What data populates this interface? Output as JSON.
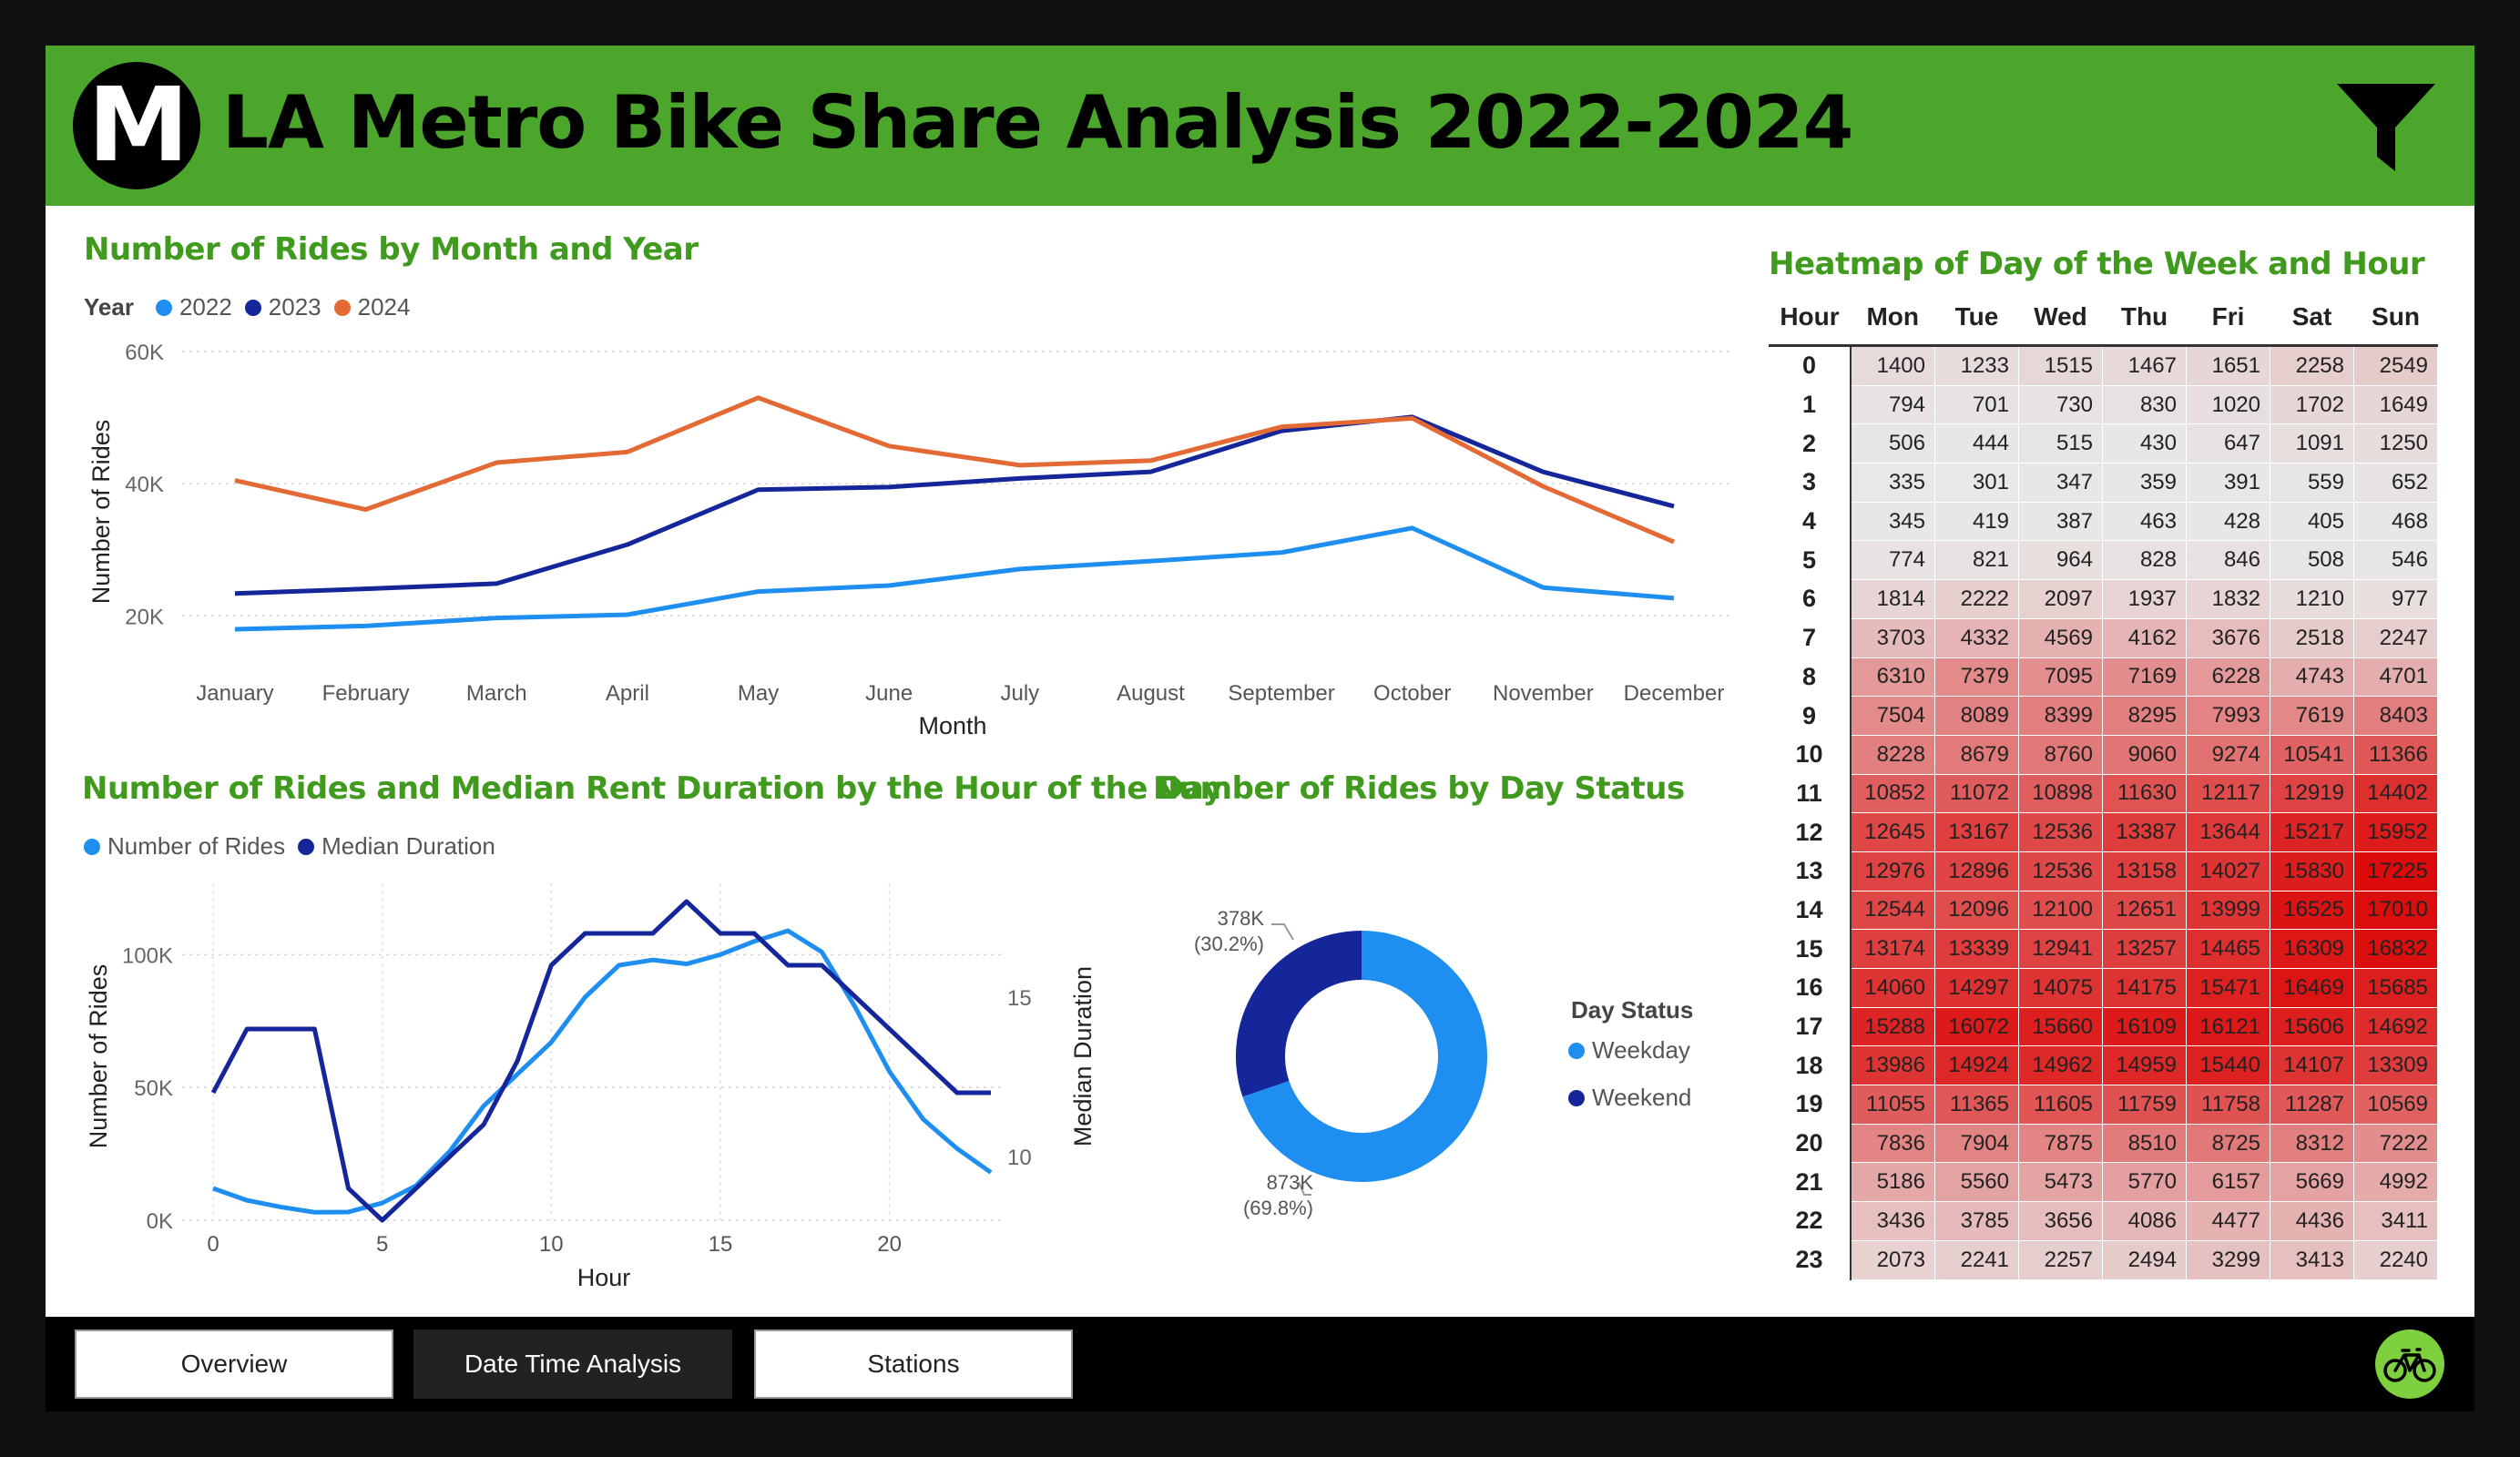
{
  "header": {
    "logo_letter": "M",
    "title": "LA Metro Bike Share Analysis 2022-2024",
    "filter_icon": "filter-icon"
  },
  "colors": {
    "header_bg": "#4ca62c",
    "title_green": "#3f9a1d",
    "y2022": "#1e8ff0",
    "y2023": "#142699",
    "y2024": "#e46a35",
    "weekday": "#1e8ff0",
    "weekend": "#142699"
  },
  "monthly": {
    "title": "Number of Rides by Month and Year",
    "legend_title": "Year",
    "xlabel": "Month",
    "ylabel": "Number of Rides"
  },
  "hourly": {
    "title": "Number of Rides and Median Rent Duration by the Hour of the Day",
    "xlabel": "Hour",
    "ylabel": "Number of Rides",
    "y2label": "Median Duration"
  },
  "daystatus": {
    "title": "Number of Rides by Day Status",
    "legend_title": "Day Status"
  },
  "heatmap": {
    "title": "Heatmap of Day of the Week and Hour",
    "columns": [
      "Hour",
      "Mon",
      "Tue",
      "Wed",
      "Thu",
      "Fri",
      "Sat",
      "Sun"
    ],
    "rows": [
      [
        0,
        1400,
        1233,
        1515,
        1467,
        1651,
        2258,
        2549
      ],
      [
        1,
        794,
        701,
        730,
        830,
        1020,
        1702,
        1649
      ],
      [
        2,
        506,
        444,
        515,
        430,
        647,
        1091,
        1250
      ],
      [
        3,
        335,
        301,
        347,
        359,
        391,
        559,
        652
      ],
      [
        4,
        345,
        419,
        387,
        463,
        428,
        405,
        468
      ],
      [
        5,
        774,
        821,
        964,
        828,
        846,
        508,
        546
      ],
      [
        6,
        1814,
        2222,
        2097,
        1937,
        1832,
        1210,
        977
      ],
      [
        7,
        3703,
        4332,
        4569,
        4162,
        3676,
        2518,
        2247
      ],
      [
        8,
        6310,
        7379,
        7095,
        7169,
        6228,
        4743,
        4701
      ],
      [
        9,
        7504,
        8089,
        8399,
        8295,
        7993,
        7619,
        8403
      ],
      [
        10,
        8228,
        8679,
        8760,
        9060,
        9274,
        10541,
        11366
      ],
      [
        11,
        10852,
        11072,
        10898,
        11630,
        12117,
        12919,
        14402
      ],
      [
        12,
        12645,
        13167,
        12536,
        13387,
        13644,
        15217,
        15952
      ],
      [
        13,
        12976,
        12896,
        12536,
        13158,
        14027,
        15830,
        17225
      ],
      [
        14,
        12544,
        12096,
        12100,
        12651,
        13999,
        16525,
        17010
      ],
      [
        15,
        13174,
        13339,
        12941,
        13257,
        14465,
        16309,
        16832
      ],
      [
        16,
        14060,
        14297,
        14075,
        14175,
        15471,
        16469,
        15685
      ],
      [
        17,
        15288,
        16072,
        15660,
        16109,
        16121,
        15606,
        14692
      ],
      [
        18,
        13986,
        14924,
        14962,
        14959,
        15440,
        14107,
        13309
      ],
      [
        19,
        11055,
        11365,
        11605,
        11759,
        11758,
        11287,
        10569
      ],
      [
        20,
        7836,
        7904,
        7875,
        8510,
        8725,
        8312,
        7222
      ],
      [
        21,
        5186,
        5560,
        5473,
        5770,
        6157,
        5669,
        4992
      ],
      [
        22,
        3436,
        3785,
        3656,
        4086,
        4477,
        4436,
        3411
      ],
      [
        23,
        2073,
        2241,
        2257,
        2494,
        3299,
        3413,
        2240
      ]
    ]
  },
  "nav": {
    "buttons": [
      "Overview",
      "Date Time Analysis",
      "Stations"
    ],
    "active": "Date Time Analysis",
    "bike_icon": "bicycle-icon"
  },
  "chart_data": [
    {
      "type": "line",
      "title": "Number of Rides by Month and Year",
      "xlabel": "Month",
      "ylabel": "Number of Rides",
      "legend_title": "Year",
      "legend_position": "top-left",
      "categories": [
        "January",
        "February",
        "March",
        "April",
        "May",
        "June",
        "July",
        "August",
        "September",
        "October",
        "November",
        "December"
      ],
      "y_ticks": [
        "20K",
        "40K",
        "60K"
      ],
      "ylim": [
        14000,
        60000
      ],
      "grid": true,
      "series": [
        {
          "name": "2022",
          "values": [
            18000,
            18500,
            19700,
            20200,
            23700,
            24600,
            27100,
            28300,
            29600,
            33300,
            24300,
            22700
          ]
        },
        {
          "name": "2023",
          "values": [
            23400,
            24100,
            24900,
            30800,
            39100,
            39500,
            40800,
            41800,
            48000,
            50100,
            41800,
            36600
          ]
        },
        {
          "name": "2024",
          "values": [
            40500,
            36100,
            43200,
            44800,
            53000,
            45700,
            42800,
            43500,
            48600,
            49900,
            39600,
            31200
          ]
        }
      ]
    },
    {
      "type": "line",
      "title": "Number of Rides and Median Rent Duration by the Hour of the Day",
      "xlabel": "Hour",
      "ylabel": "Number of Rides",
      "y2label": "Median Duration",
      "legend_position": "top-left",
      "x": [
        0,
        1,
        2,
        3,
        4,
        5,
        6,
        7,
        8,
        9,
        10,
        11,
        12,
        13,
        14,
        15,
        16,
        17,
        18,
        19,
        20,
        21,
        22,
        23
      ],
      "x_ticks": [
        0,
        5,
        10,
        15,
        20
      ],
      "y_ticks": [
        "0K",
        "50K",
        "100K"
      ],
      "y2_ticks": [
        10,
        15
      ],
      "ylim": [
        0,
        120000
      ],
      "y2lim": [
        8,
        18
      ],
      "grid": true,
      "series": [
        {
          "name": "Number of Rides",
          "axis": "left",
          "values": [
            12000,
            7500,
            5000,
            3000,
            3100,
            6500,
            13000,
            26000,
            43000,
            55000,
            67000,
            84000,
            96000,
            98000,
            96500,
            100000,
            105000,
            109000,
            101000,
            80000,
            56000,
            38000,
            27000,
            18000
          ]
        },
        {
          "name": "Median Duration",
          "axis": "right",
          "values": [
            12,
            14,
            14,
            14,
            9,
            8,
            9,
            10,
            11,
            13,
            16,
            17,
            17,
            17,
            18,
            17,
            17,
            16,
            16,
            15,
            14,
            13,
            12,
            12
          ]
        }
      ]
    },
    {
      "type": "pie",
      "subtype": "donut",
      "title": "Number of Rides by Day Status",
      "legend_title": "Day Status",
      "legend_position": "right",
      "slices": [
        {
          "name": "Weekday",
          "value": 873000,
          "label": "873K",
          "pct_label": "(69.8%)"
        },
        {
          "name": "Weekend",
          "value": 378000,
          "label": "378K",
          "pct_label": "(30.2%)"
        }
      ]
    }
  ]
}
